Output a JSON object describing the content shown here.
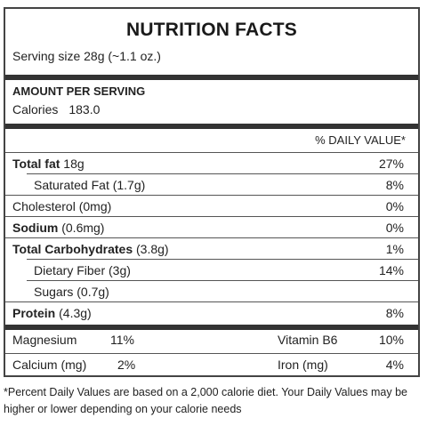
{
  "title": "NUTRITION FACTS",
  "serving": "Serving size 28g (~1.1 oz.)",
  "amount_label": "AMOUNT PER SERVING",
  "calories": {
    "label": "Calories",
    "value": "183.0"
  },
  "dv_header": "% DAILY VALUE*",
  "nutrients": [
    {
      "bold": "Total fat",
      "rest": " 18g",
      "pct": "27%"
    },
    {
      "bold": "",
      "rest": "Saturated Fat (1.7g)",
      "pct": "8%"
    },
    {
      "bold": "",
      "rest": "Cholesterol (0mg)",
      "pct": "0%"
    },
    {
      "bold": "Sodium",
      "rest": " (0.6mg)",
      "pct": "0%"
    },
    {
      "bold": "Total Carbohydrates",
      "rest": " (3.8g)",
      "pct": "1%"
    },
    {
      "bold": "",
      "rest": "Dietary Fiber (3g)",
      "pct": "14%"
    },
    {
      "bold": "",
      "rest": "Sugars (0.7g)",
      "pct": ""
    },
    {
      "bold": "Protein",
      "rest": " (4.3g)",
      "pct": "8%"
    }
  ],
  "vitamins": [
    {
      "name": "Magnesium",
      "pct": "11%"
    },
    {
      "name": "Vitamin B6",
      "pct": "10%"
    },
    {
      "name": "Calcium (mg)",
      "pct": "2%"
    },
    {
      "name": "Iron (mg)",
      "pct": "4%"
    }
  ],
  "footnote": "*Percent Daily Values are based on a 2,000 calorie diet. Your Daily Values may be higher or lower depending on your calorie needs"
}
